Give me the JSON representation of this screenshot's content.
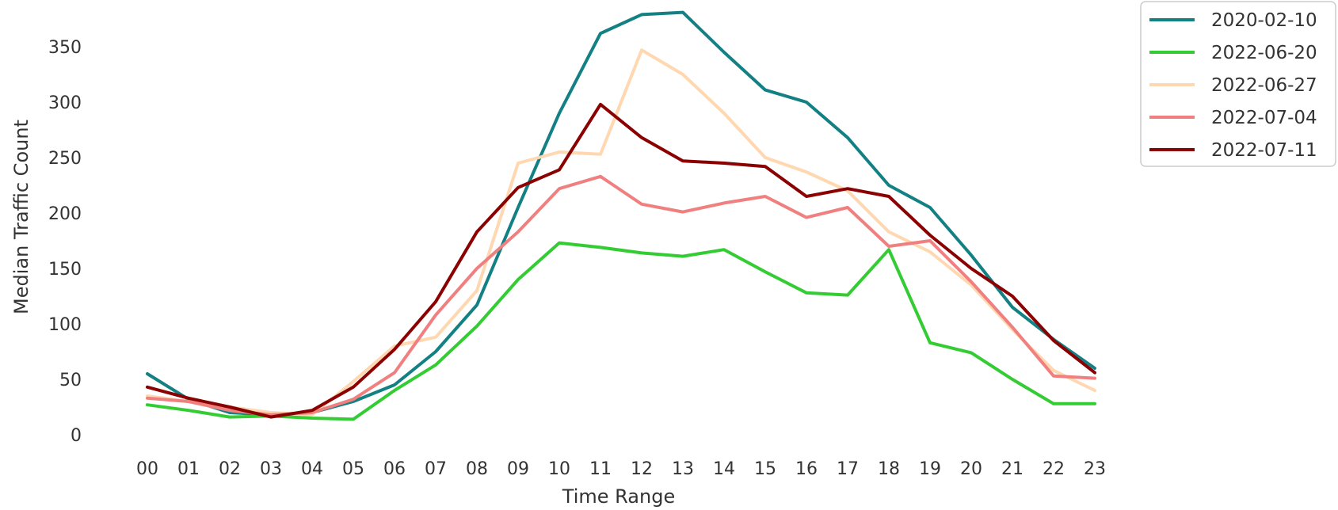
{
  "chart_data": {
    "type": "line",
    "title": "",
    "xlabel": "Time Range",
    "ylabel": "Median Traffic Count",
    "x": [
      "00",
      "01",
      "02",
      "03",
      "04",
      "05",
      "06",
      "07",
      "08",
      "09",
      "10",
      "11",
      "12",
      "13",
      "14",
      "15",
      "16",
      "17",
      "18",
      "19",
      "20",
      "21",
      "22",
      "23"
    ],
    "yticks": [
      0,
      50,
      100,
      150,
      200,
      250,
      300,
      350
    ],
    "ylim": [
      -5,
      385
    ],
    "grid": false,
    "legend_position": "outside-top-right",
    "series": [
      {
        "name": "2020-02-10",
        "color": "#138084",
        "values": [
          55,
          32,
          20,
          18,
          20,
          30,
          45,
          75,
          117,
          205,
          290,
          362,
          379,
          381,
          345,
          311,
          300,
          268,
          225,
          205,
          162,
          115,
          86,
          60
        ]
      },
      {
        "name": "2022-06-20",
        "color": "#33cc33",
        "values": [
          27,
          22,
          16,
          17,
          15,
          14,
          40,
          63,
          98,
          140,
          173,
          169,
          164,
          161,
          167,
          147,
          128,
          126,
          167,
          83,
          74,
          50,
          28,
          28
        ]
      },
      {
        "name": "2022-06-27",
        "color": "#ffd7b0",
        "values": [
          35,
          30,
          25,
          20,
          18,
          48,
          80,
          88,
          130,
          245,
          255,
          253,
          347,
          325,
          290,
          250,
          237,
          220,
          183,
          165,
          135,
          95,
          58,
          40
        ]
      },
      {
        "name": "2022-07-04",
        "color": "#f08080",
        "values": [
          33,
          30,
          22,
          18,
          20,
          32,
          56,
          108,
          150,
          183,
          222,
          233,
          208,
          201,
          209,
          215,
          196,
          205,
          170,
          175,
          138,
          97,
          53,
          51
        ]
      },
      {
        "name": "2022-07-11",
        "color": "#8b0000",
        "values": [
          43,
          33,
          25,
          16,
          22,
          43,
          77,
          120,
          183,
          223,
          239,
          298,
          268,
          247,
          245,
          242,
          215,
          222,
          215,
          180,
          150,
          125,
          85,
          56
        ]
      }
    ]
  }
}
